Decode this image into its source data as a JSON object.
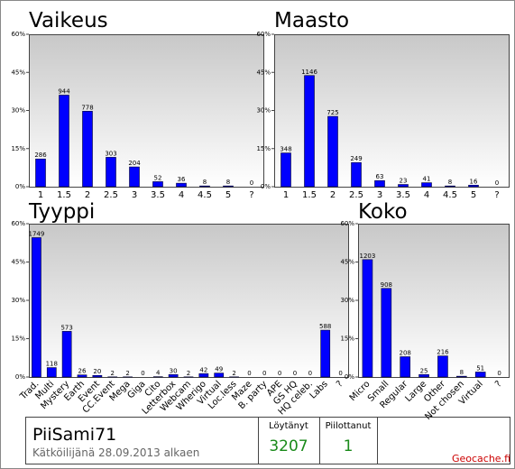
{
  "chart_data": [
    {
      "type": "bar",
      "title": "Vaikeus",
      "color": "#0000ff",
      "categories": [
        "1",
        "1.5",
        "2",
        "2.5",
        "3",
        "3.5",
        "4",
        "4.5",
        "5",
        "?"
      ],
      "values": [
        286,
        944,
        778,
        303,
        204,
        52,
        36,
        8,
        8,
        0
      ],
      "ylim": [
        0,
        1571.4
      ],
      "yticks": [
        {
          "value": 0,
          "label": "0%"
        },
        {
          "value": 392.85,
          "label": "15%"
        },
        {
          "value": 785.7,
          "label": "30%"
        },
        {
          "value": 1178.55,
          "label": "45%"
        },
        {
          "value": 1571.4,
          "label": "60%"
        }
      ]
    },
    {
      "type": "bar",
      "title": "Maasto",
      "color": "#0000ff",
      "categories": [
        "1",
        "1.5",
        "2",
        "2.5",
        "3",
        "3.5",
        "4",
        "4.5",
        "5",
        "?"
      ],
      "values": [
        348,
        1146,
        725,
        249,
        63,
        23,
        41,
        8,
        16,
        0
      ],
      "ylim": [
        0,
        1571.4
      ],
      "yticks": [
        {
          "value": 0,
          "label": "0%"
        },
        {
          "value": 392.85,
          "label": "15%"
        },
        {
          "value": 785.7,
          "label": "30%"
        },
        {
          "value": 1178.55,
          "label": "45%"
        },
        {
          "value": 1571.4,
          "label": "60%"
        }
      ]
    },
    {
      "type": "bar",
      "title": "Tyyppi",
      "color": "#0000ff",
      "categories": [
        "Trad.",
        "Multi",
        "Mystery",
        "Earth",
        "Event",
        "CC.Event",
        "Mega",
        "Giga",
        "Cito",
        "Letterbox",
        "Webcam",
        "Wherigo",
        "Virtual",
        "Loc.less",
        "Maze",
        "B. party",
        "APE",
        "GS HQ",
        "HQ celeb.",
        "Labs",
        "?"
      ],
      "values": [
        1749,
        118,
        573,
        26,
        20,
        2,
        2,
        0,
        4,
        30,
        2,
        42,
        49,
        2,
        0,
        0,
        0,
        0,
        0,
        588,
        0
      ],
      "ylim": [
        0,
        1924.2
      ],
      "yticks": [
        {
          "value": 0,
          "label": "0%"
        },
        {
          "value": 481.05,
          "label": "15%"
        },
        {
          "value": 962.1,
          "label": "30%"
        },
        {
          "value": 1443.15,
          "label": "45%"
        },
        {
          "value": 1924.2,
          "label": "60%"
        }
      ]
    },
    {
      "type": "bar",
      "title": "Koko",
      "color": "#0000ff",
      "categories": [
        "Micro",
        "Small",
        "Regular",
        "Large",
        "Other",
        "Not chosen",
        "Virtual",
        "?"
      ],
      "values": [
        1203,
        908,
        208,
        25,
        216,
        8,
        51,
        0
      ],
      "ylim": [
        0,
        1571.4
      ],
      "yticks": [
        {
          "value": 0,
          "label": "0%"
        },
        {
          "value": 392.85,
          "label": "15%"
        },
        {
          "value": 785.7,
          "label": "30%"
        },
        {
          "value": 1178.55,
          "label": "45%"
        },
        {
          "value": 1571.4,
          "label": "60%"
        }
      ]
    }
  ],
  "profile": {
    "name": "PiiSami71",
    "since": "Kätköilijänä 28.09.2013 alkaen",
    "found_label": "Löytänyt",
    "found": "3207",
    "hidden_label": "Piilottanut",
    "hidden": "1",
    "source": "Geocache.fi"
  }
}
